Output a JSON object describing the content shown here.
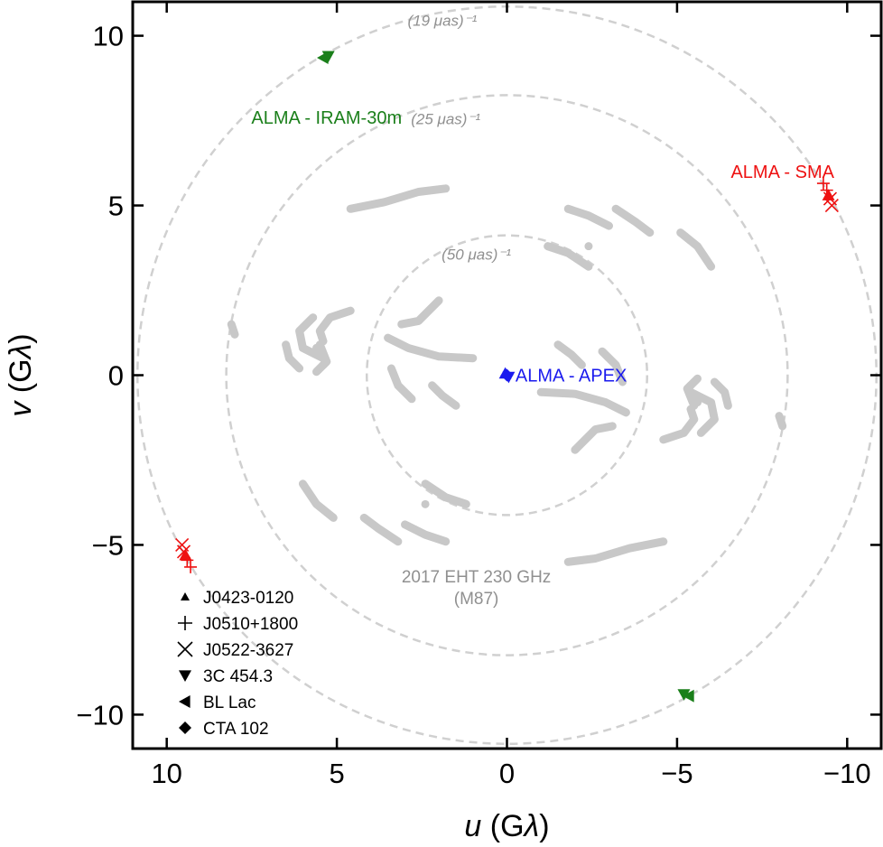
{
  "chart_data": {
    "type": "scatter",
    "title": "",
    "xlabel": "u (Gλ)",
    "ylabel": "v (Gλ)",
    "xlabel_parts": [
      "u",
      " (G",
      "λ",
      ")"
    ],
    "ylabel_parts": [
      "v",
      " (G",
      "λ",
      ")"
    ],
    "xlim": [
      11,
      -11
    ],
    "ylim": [
      -11,
      11
    ],
    "x_reversed": true,
    "xticks": [
      10,
      5,
      0,
      -5,
      -10
    ],
    "yticks": [
      10,
      5,
      0,
      -5,
      -10
    ],
    "xtick_labels": [
      "10",
      "5",
      "0",
      "−5",
      "−10"
    ],
    "ytick_labels": [
      "10",
      "5",
      "0",
      "−5",
      "−10"
    ],
    "grid": false,
    "legend_position": "bottom-left",
    "colors": {
      "eht_coverage": "#c8c8c8",
      "circle": "#d0d0d0",
      "circle_label": "#909090",
      "alma_sma": "#ee1111",
      "alma_iram": "#1a7f1a",
      "alma_apex": "#1a1aee",
      "legend_marker": "#000000"
    },
    "circles": [
      {
        "radius_glambda": 4.12,
        "label": "(50 μas)⁻¹",
        "label_at": [
          0.9,
          3.4
        ]
      },
      {
        "radius_glambda": 8.25,
        "label": "(25 μas)⁻¹",
        "label_at": [
          1.8,
          7.4
        ]
      },
      {
        "radius_glambda": 10.86,
        "label": "(19 μas)⁻¹",
        "label_at": [
          1.9,
          10.3
        ]
      }
    ],
    "coverage_label": {
      "lines": [
        "2017 EHT 230 GHz",
        "(M87)"
      ],
      "at": [
        0.9,
        -6.1
      ]
    },
    "eht_tracks": [
      [
        [
          4.6,
          4.9
        ],
        [
          3.6,
          5.1
        ],
        [
          2.6,
          5.4
        ],
        [
          1.8,
          5.5
        ]
      ],
      [
        [
          -4.6,
          -4.9
        ],
        [
          -3.6,
          -5.1
        ],
        [
          -2.6,
          -5.4
        ],
        [
          -1.8,
          -5.5
        ]
      ],
      [
        [
          -1.8,
          4.9
        ],
        [
          -2.4,
          4.7
        ],
        [
          -3.0,
          4.4
        ]
      ],
      [
        [
          1.8,
          -4.9
        ],
        [
          2.4,
          -4.7
        ],
        [
          3.0,
          -4.4
        ]
      ],
      [
        [
          -3.2,
          4.9
        ],
        [
          -3.8,
          4.5
        ],
        [
          -4.2,
          4.2
        ]
      ],
      [
        [
          3.2,
          -4.9
        ],
        [
          3.8,
          -4.5
        ],
        [
          4.2,
          -4.2
        ]
      ],
      [
        [
          -5.1,
          4.2
        ],
        [
          -5.6,
          3.8
        ],
        [
          -6.0,
          3.2
        ]
      ],
      [
        [
          5.1,
          -4.2
        ],
        [
          5.6,
          -3.8
        ],
        [
          6.0,
          -3.2
        ]
      ],
      [
        [
          -1.2,
          3.8
        ],
        [
          -1.8,
          3.6
        ],
        [
          -2.4,
          3.2
        ]
      ],
      [
        [
          1.2,
          -3.8
        ],
        [
          1.8,
          -3.6
        ],
        [
          2.4,
          -3.2
        ]
      ],
      [
        [
          2.0,
          2.2
        ],
        [
          2.6,
          1.6
        ],
        [
          3.1,
          1.5
        ]
      ],
      [
        [
          -2.0,
          -2.2
        ],
        [
          -2.6,
          -1.6
        ],
        [
          -3.1,
          -1.5
        ]
      ],
      [
        [
          4.6,
          1.9
        ],
        [
          5.2,
          1.7
        ],
        [
          5.5,
          1.3
        ],
        [
          5.4,
          1.0
        ]
      ],
      [
        [
          -4.6,
          -1.9
        ],
        [
          -5.2,
          -1.7
        ],
        [
          -5.5,
          -1.3
        ],
        [
          -5.4,
          -1.0
        ]
      ],
      [
        [
          5.5,
          0.9
        ],
        [
          5.3,
          0.4
        ],
        [
          5.6,
          0.1
        ]
      ],
      [
        [
          -5.5,
          -0.9
        ],
        [
          -5.3,
          -0.4
        ],
        [
          -5.6,
          -0.1
        ]
      ],
      [
        [
          3.5,
          1.1
        ],
        [
          2.9,
          0.8
        ],
        [
          2.0,
          0.55
        ],
        [
          1.0,
          0.5
        ]
      ],
      [
        [
          -3.5,
          -1.1
        ],
        [
          -2.9,
          -0.8
        ],
        [
          -2.0,
          -0.55
        ],
        [
          -1.0,
          -0.5
        ]
      ],
      [
        [
          -1.5,
          0.9
        ],
        [
          -1.9,
          0.6
        ],
        [
          -2.2,
          0.3
        ]
      ],
      [
        [
          1.5,
          -0.9
        ],
        [
          1.9,
          -0.6
        ],
        [
          2.2,
          -0.3
        ]
      ],
      [
        [
          -2.8,
          0.7
        ],
        [
          -3.2,
          0.3
        ],
        [
          -3.4,
          -0.2
        ]
      ],
      [
        [
          2.8,
          -0.7
        ],
        [
          3.2,
          -0.3
        ],
        [
          3.4,
          0.2
        ]
      ],
      [
        [
          8.1,
          1.5
        ],
        [
          8.0,
          1.2
        ]
      ],
      [
        [
          -8.1,
          -1.5
        ],
        [
          -8.0,
          -1.2
        ]
      ],
      [
        [
          -5.4,
          -0.5
        ],
        [
          -6.0,
          -0.8
        ],
        [
          -6.1,
          -1.3
        ],
        [
          -5.7,
          -1.7
        ]
      ],
      [
        [
          5.4,
          0.5
        ],
        [
          6.0,
          0.8
        ],
        [
          6.1,
          1.3
        ],
        [
          5.7,
          1.7
        ]
      ],
      [
        [
          -6.1,
          -0.2
        ],
        [
          -6.4,
          -0.5
        ],
        [
          -6.5,
          -0.9
        ]
      ],
      [
        [
          6.1,
          0.2
        ],
        [
          6.4,
          0.5
        ],
        [
          6.5,
          0.9
        ]
      ]
    ],
    "eht_dots": [
      [
        5.6,
        0.8
      ],
      [
        -5.6,
        -0.8
      ],
      [
        5.4,
        0.3
      ],
      [
        -5.4,
        -0.3
      ],
      [
        -2.4,
        3.8
      ],
      [
        2.4,
        -3.8
      ]
    ],
    "marker_groups": [
      {
        "baseline": "ALMA - SMA",
        "color_key": "alma_sma",
        "label_at": [
          -8.1,
          6.0
        ],
        "label_anchor": "middle",
        "points": [
          {
            "source": "J0510+1800",
            "marker": "plus",
            "x": -9.3,
            "y": 5.65
          },
          {
            "source": "J0510+1800",
            "marker": "plus",
            "x": -9.4,
            "y": 5.45
          },
          {
            "source": "J0423-0120",
            "marker": "triangle-up",
            "x": -9.45,
            "y": 5.3
          },
          {
            "source": "J0522-3627",
            "marker": "x",
            "x": -9.5,
            "y": 5.2
          },
          {
            "source": "J0522-3627",
            "marker": "x",
            "x": -9.55,
            "y": 5.0
          },
          {
            "source": "J0510+1800",
            "marker": "plus",
            "x": 9.3,
            "y": -5.65
          },
          {
            "source": "J0510+1800",
            "marker": "plus",
            "x": 9.4,
            "y": -5.45
          },
          {
            "source": "J0423-0120",
            "marker": "triangle-up",
            "x": 9.45,
            "y": -5.3
          },
          {
            "source": "J0522-3627",
            "marker": "x",
            "x": 9.5,
            "y": -5.2
          },
          {
            "source": "J0522-3627",
            "marker": "x",
            "x": 9.55,
            "y": -5.0
          }
        ]
      },
      {
        "baseline": "ALMA - IRAM-30m",
        "color_key": "alma_iram",
        "label_at": [
          5.3,
          7.6
        ],
        "label_anchor": "middle",
        "points": [
          {
            "source": "BL Lac",
            "marker": "triangle-left",
            "x": 5.4,
            "y": 9.35
          },
          {
            "source": "3C 454.3",
            "marker": "triangle-down",
            "x": 5.25,
            "y": 9.4
          },
          {
            "source": "BL Lac",
            "marker": "triangle-left",
            "x": -5.35,
            "y": -9.45
          },
          {
            "source": "3C 454.3",
            "marker": "triangle-down",
            "x": -5.2,
            "y": -9.4
          }
        ]
      },
      {
        "baseline": "ALMA - APEX",
        "color_key": "alma_apex",
        "label_at": [
          -0.25,
          0.0
        ],
        "label_anchor": "start",
        "points": [
          {
            "source": "CTA 102",
            "marker": "diamond",
            "x": 0.0,
            "y": 0.0
          },
          {
            "source": "J0423-0120",
            "marker": "triangle-up",
            "x": 0.05,
            "y": 0.05
          },
          {
            "source": "3C 454.3",
            "marker": "triangle-down",
            "x": -0.05,
            "y": -0.05
          }
        ]
      }
    ],
    "legend": [
      {
        "label": "J0423-0120",
        "marker": "triangle-up"
      },
      {
        "label": "J0510+1800",
        "marker": "plus"
      },
      {
        "label": "J0522-3627",
        "marker": "x"
      },
      {
        "label": "3C 454.3",
        "marker": "triangle-down"
      },
      {
        "label": "BL Lac",
        "marker": "triangle-left"
      },
      {
        "label": "CTA 102",
        "marker": "diamond"
      }
    ]
  }
}
